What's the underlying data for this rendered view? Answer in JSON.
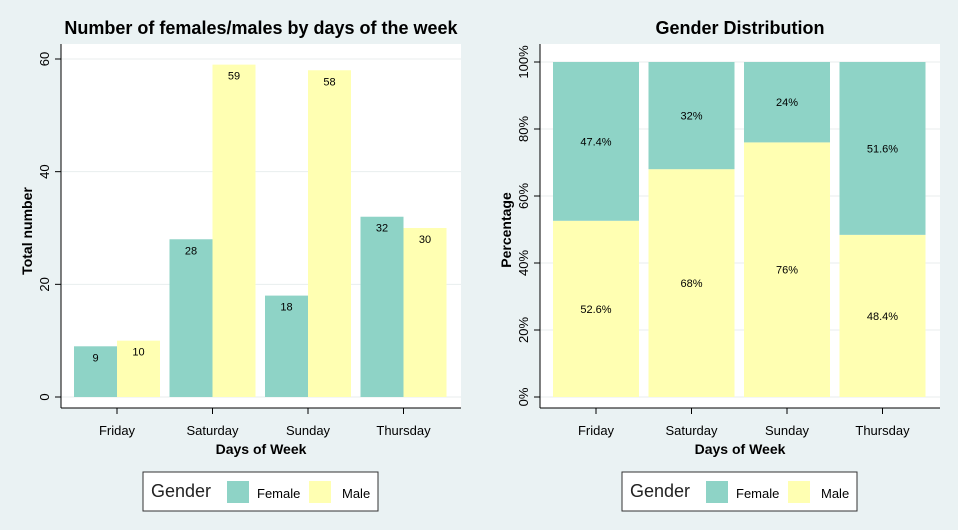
{
  "colors": {
    "female": "#8ed3c6",
    "male": "#ffffb2",
    "background": "#eaf2f3",
    "plot": "#ffffff"
  },
  "legend": {
    "title": "Gender",
    "items": [
      "Female",
      "Male"
    ]
  },
  "chart_data": [
    {
      "type": "bar",
      "title": "Number of females/males by days of the week",
      "xlabel": "Days of Week",
      "ylabel": "Total number",
      "categories": [
        "Friday",
        "Saturday",
        "Sunday",
        "Thursday"
      ],
      "series": [
        {
          "name": "Female",
          "values": [
            9,
            28,
            18,
            32
          ],
          "labels": [
            "9",
            "28",
            "18",
            "32"
          ]
        },
        {
          "name": "Male",
          "values": [
            10,
            59,
            58,
            30
          ],
          "labels": [
            "10",
            "59",
            "58",
            "30"
          ]
        }
      ],
      "ylim": [
        0,
        60
      ],
      "yticks": [
        0,
        20,
        40,
        60
      ],
      "ytick_labels": [
        "0",
        "20",
        "40",
        "60"
      ],
      "grid": true,
      "legend_position": "bottom"
    },
    {
      "type": "bar",
      "stacked": true,
      "title": "Gender Distribution",
      "xlabel": "Days of Week",
      "ylabel": "Percentage",
      "categories": [
        "Friday",
        "Saturday",
        "Sunday",
        "Thursday"
      ],
      "series": [
        {
          "name": "Male",
          "values": [
            52.6,
            68,
            76,
            48.4
          ],
          "labels": [
            "52.6%",
            "68%",
            "76%",
            "48.4%"
          ]
        },
        {
          "name": "Female",
          "values": [
            47.4,
            32,
            24,
            51.6
          ],
          "labels": [
            "47.4%",
            "32%",
            "24%",
            "51.6%"
          ]
        }
      ],
      "ylim": [
        0,
        100
      ],
      "yticks": [
        0,
        20,
        40,
        60,
        80,
        100
      ],
      "ytick_labels": [
        "0%",
        "20%",
        "40%",
        "60%",
        "80%",
        "100%"
      ],
      "grid": true,
      "legend_position": "bottom"
    }
  ]
}
